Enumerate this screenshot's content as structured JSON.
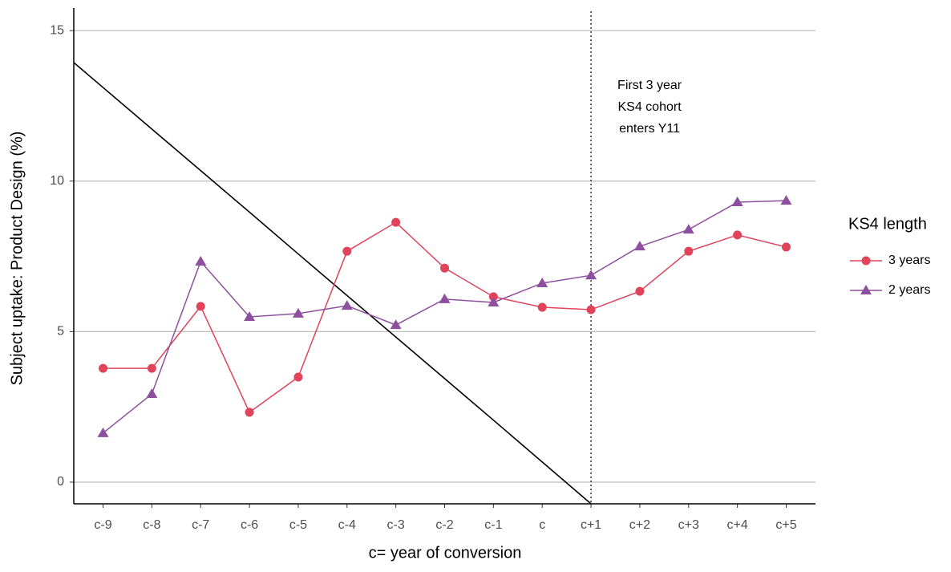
{
  "chart_data": {
    "type": "line",
    "x_label": "c= year of conversion",
    "y_label": "Subject uptake: Product Design (%)",
    "categories": [
      "c-9",
      "c-8",
      "c-7",
      "c-6",
      "c-5",
      "c-4",
      "c-3",
      "c-2",
      "c-1",
      "c",
      "c+1",
      "c+2",
      "c+3",
      "c+4",
      "c+5"
    ],
    "series": [
      {
        "name": "3 years",
        "color": "#e0435a",
        "marker": "circle",
        "values": [
          3.78,
          3.78,
          5.84,
          2.32,
          3.49,
          7.67,
          8.63,
          7.11,
          6.16,
          5.81,
          5.73,
          6.34,
          7.67,
          8.21,
          7.81
        ]
      },
      {
        "name": "2 years",
        "color": "#8e4f9e",
        "marker": "triangle",
        "values": [
          1.63,
          2.93,
          7.33,
          5.49,
          5.6,
          5.86,
          5.22,
          6.08,
          5.97,
          6.61,
          6.87,
          7.83,
          8.39,
          9.3,
          9.35
        ]
      }
    ],
    "reference_line": {
      "color": "#000000",
      "values": [
        13.11,
        11.73,
        10.35,
        8.97,
        7.58,
        6.2,
        4.82,
        3.44,
        2.06,
        0.67,
        -0.72,
        null,
        null,
        null,
        null
      ]
    },
    "vline_category": "c+1",
    "annotation": [
      "First 3 year",
      "KS4 cohort",
      "enters Y11"
    ],
    "legend_title": "KS4 length",
    "legend_position": "right",
    "ylim": [
      -0.72,
      15.75
    ],
    "yticks": [
      0,
      5,
      10,
      15
    ],
    "grid": true
  }
}
